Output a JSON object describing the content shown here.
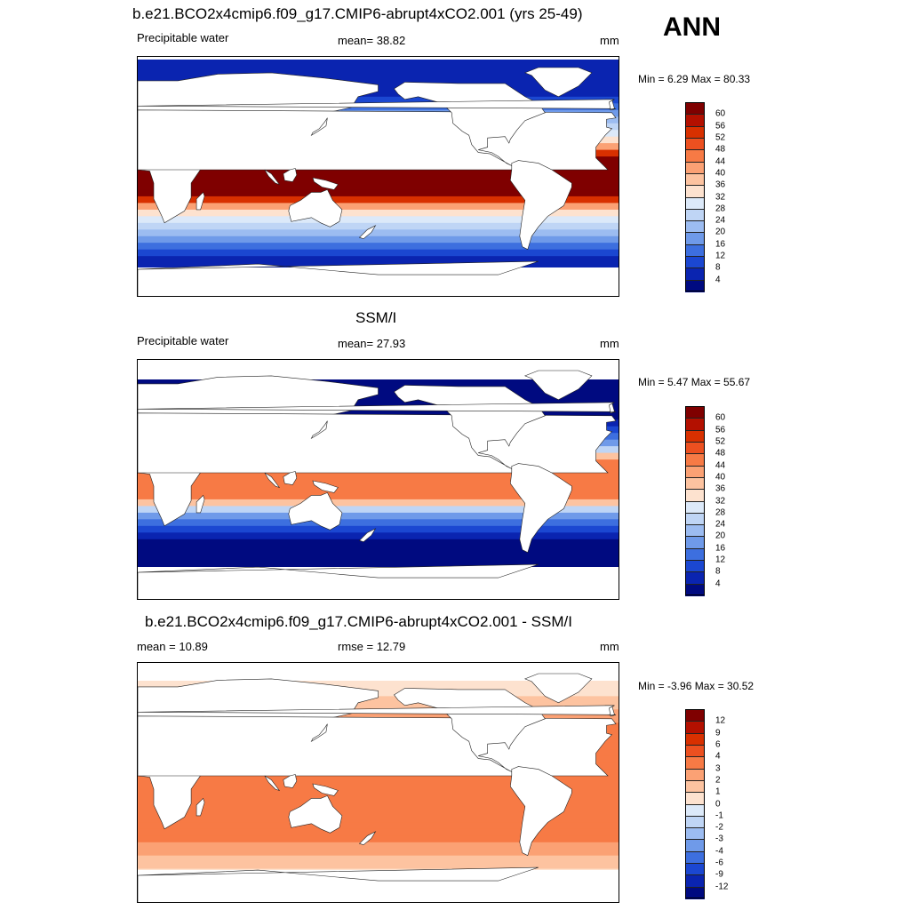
{
  "header": {
    "ann_label": "ANN"
  },
  "panels": [
    {
      "id": "model",
      "title": "b.e21.BCO2x4cmip6.f09_g17.CMIP6-abrupt4xCO2.001 (yrs 25-49)",
      "left_label": "Precipitable water",
      "center_label": "mean=  38.82",
      "units": "mm",
      "minmax": "Min =   6.29 Max =  80.33",
      "colorbar_labels": [
        "60",
        "56",
        "52",
        "48",
        "44",
        "40",
        "36",
        "32",
        "28",
        "24",
        "20",
        "16",
        "12",
        "8",
        "4"
      ],
      "colorbar_colors": [
        "#7f0000",
        "#b31000",
        "#d83000",
        "#ec5020",
        "#f77a45",
        "#fba174",
        "#fdc3a0",
        "#fde2cf",
        "#dce9f9",
        "#bfd5f5",
        "#9cbcf1",
        "#6f9ae9",
        "#3d6fdf",
        "#1b47d1",
        "#0a24b0",
        "#000a80"
      ],
      "map_palette": [
        "#000a80",
        "#0a24b0",
        "#1b47d1",
        "#3d6fdf",
        "#6f9ae9",
        "#9cbcf1",
        "#bfd5f5",
        "#dce9f9",
        "#fde2cf",
        "#fdc3a0",
        "#fba174",
        "#f77a45",
        "#ec5020",
        "#d83000",
        "#b31000",
        "#7f0000"
      ]
    },
    {
      "id": "obs",
      "title": "SSM/I",
      "left_label": "Precipitable water",
      "center_label": "mean=  27.93",
      "units": "mm",
      "minmax": "Min =   5.47 Max =  55.67",
      "colorbar_labels": [
        "60",
        "56",
        "52",
        "48",
        "44",
        "40",
        "36",
        "32",
        "28",
        "24",
        "20",
        "16",
        "12",
        "8",
        "4"
      ],
      "colorbar_colors": [
        "#7f0000",
        "#b31000",
        "#d83000",
        "#ec5020",
        "#f77a45",
        "#fba174",
        "#fdc3a0",
        "#fde2cf",
        "#dce9f9",
        "#bfd5f5",
        "#9cbcf1",
        "#6f9ae9",
        "#3d6fdf",
        "#1b47d1",
        "#0a24b0",
        "#000a80"
      ],
      "map_palette": [
        "#000a80",
        "#0a24b0",
        "#1b47d1",
        "#3d6fdf",
        "#6f9ae9",
        "#9cbcf1",
        "#bfd5f5",
        "#dce9f9",
        "#fde2cf",
        "#fdc3a0",
        "#fba174",
        "#f77a45",
        "#ec5020",
        "#d83000",
        "#b31000",
        "#7f0000"
      ]
    },
    {
      "id": "diff",
      "title": "b.e21.BCO2x4cmip6.f09_g17.CMIP6-abrupt4xCO2.001 - SSM/I",
      "left_label": "mean =  10.89",
      "center_label": "rmse =  12.79",
      "units": "mm",
      "minmax": "Min =  -3.96 Max =  30.52",
      "colorbar_labels": [
        "12",
        "9",
        "6",
        "4",
        "3",
        "2",
        "1",
        "0",
        "-1",
        "-2",
        "-3",
        "-4",
        "-6",
        "-9",
        "-12"
      ],
      "colorbar_colors": [
        "#7f0000",
        "#b31000",
        "#d83000",
        "#ec5020",
        "#f77a45",
        "#fba174",
        "#fdc3a0",
        "#fde2cf",
        "#dce9f9",
        "#bfd5f5",
        "#9cbcf1",
        "#6f9ae9",
        "#3d6fdf",
        "#1b47d1",
        "#0a24b0",
        "#000a80"
      ],
      "map_palette": [
        "#fde2cf",
        "#fdc3a0",
        "#fba174",
        "#f77a45",
        "#ec5020",
        "#d83000",
        "#b31000",
        "#7f0000"
      ]
    }
  ]
}
